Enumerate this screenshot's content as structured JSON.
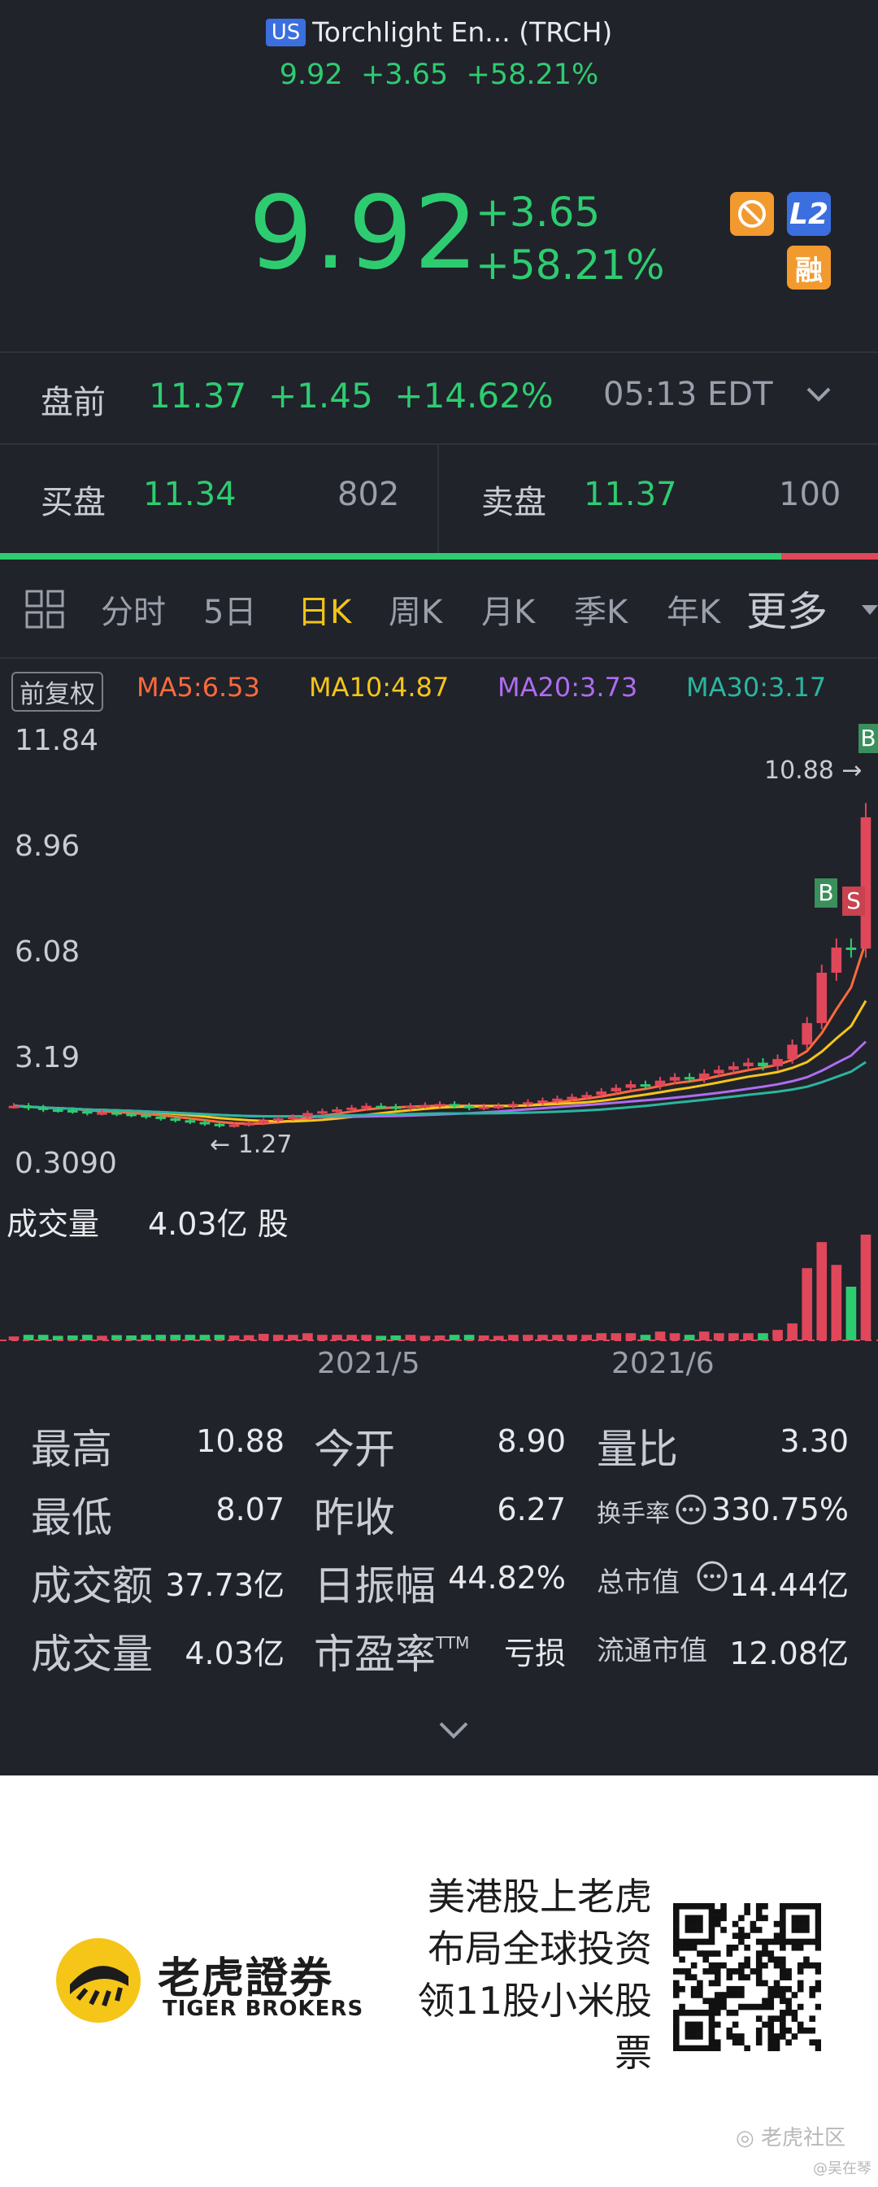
{
  "header": {
    "market_badge": "US",
    "title": "Torchlight En... (TRCH)",
    "sub_price": "9.92",
    "sub_change": "+3.65",
    "sub_pct": "+58.21%"
  },
  "quote": {
    "price": "9.92",
    "change": "+3.65",
    "change_pct": "+58.21%",
    "badge_l2": "L2",
    "badge_margin": "融"
  },
  "premarket": {
    "label": "盘前",
    "price": "11.37",
    "change": "+1.45",
    "change_pct": "+14.62%",
    "time": "05:13 EDT"
  },
  "orderbook": {
    "bid_label": "买盘",
    "bid_price": "11.34",
    "bid_size": "802",
    "ask_label": "卖盘",
    "ask_price": "11.37",
    "ask_size": "100",
    "bid_ratio": 0.89
  },
  "tabs": [
    "分时",
    "5日",
    "日K",
    "周K",
    "月K",
    "季K",
    "年K",
    "更多"
  ],
  "active_tab": "日K",
  "chart_data": {
    "type": "candlestick",
    "adjust_label": "前复权",
    "ma": [
      {
        "name": "MA5",
        "value": "MA5:6.53",
        "color": "#ff6a3d"
      },
      {
        "name": "MA10",
        "value": "MA10:4.87",
        "color": "#f5c518"
      },
      {
        "name": "MA20",
        "value": "MA20:3.73",
        "color": "#b06cf0"
      },
      {
        "name": "MA30",
        "value": "MA30:3.17",
        "color": "#2bb5a0"
      }
    ],
    "y_ticks": [
      "11.84",
      "8.96",
      "6.08",
      "3.19",
      "0.3090"
    ],
    "ylim": [
      0.309,
      11.84
    ],
    "high_marker": "10.88",
    "low_marker": "1.27",
    "x_ticks": [
      "2021/5",
      "2021/6"
    ],
    "closes": [
      1.9,
      1.85,
      1.8,
      1.78,
      1.75,
      1.7,
      1.72,
      1.68,
      1.65,
      1.6,
      1.55,
      1.5,
      1.45,
      1.4,
      1.35,
      1.38,
      1.42,
      1.5,
      1.55,
      1.6,
      1.7,
      1.75,
      1.8,
      1.85,
      1.9,
      1.88,
      1.85,
      1.9,
      1.92,
      1.95,
      1.9,
      1.85,
      1.88,
      1.9,
      1.95,
      2.0,
      2.05,
      2.1,
      2.15,
      2.2,
      2.3,
      2.4,
      2.5,
      2.45,
      2.6,
      2.7,
      2.65,
      2.8,
      2.9,
      3.0,
      3.1,
      3.0,
      3.2,
      3.6,
      4.2,
      5.6,
      6.3,
      6.27,
      9.92
    ],
    "signals": [
      {
        "label": "B",
        "type": "buy"
      },
      {
        "label": "S",
        "type": "sell"
      },
      {
        "label": "B",
        "type": "buy"
      }
    ],
    "volume_label": "成交量",
    "volume_value": "4.03亿 股"
  },
  "stats": {
    "high_label": "最高",
    "high": "10.88",
    "low_label": "最低",
    "low": "8.07",
    "turnover_label": "成交额",
    "turnover": "37.73亿",
    "volume_label": "成交量",
    "volume": "4.03亿",
    "open_label": "今开",
    "open": "8.90",
    "prev_close_label": "昨收",
    "prev_close": "6.27",
    "amplitude_label": "日振幅",
    "amplitude": "44.82%",
    "pe_label": "市盈率",
    "pe_sup": "TTM",
    "pe": "亏损",
    "vol_ratio_label": "量比",
    "vol_ratio": "3.30",
    "turnover_rate_label": "换手率",
    "turnover_rate": "330.75%",
    "market_cap_label": "总市值",
    "market_cap": "14.44亿",
    "float_cap_label": "流通市值",
    "float_cap": "12.08亿"
  },
  "ad": {
    "brand_cn": "老虎證券",
    "brand_en": "TIGER BROKERS",
    "slogan_1": "美港股上老虎",
    "slogan_2": "布局全球投资",
    "slogan_3": "领11股小米股",
    "slogan_4": "票",
    "watermark": "老虎社区",
    "watermark_user": "@吴在琴"
  }
}
